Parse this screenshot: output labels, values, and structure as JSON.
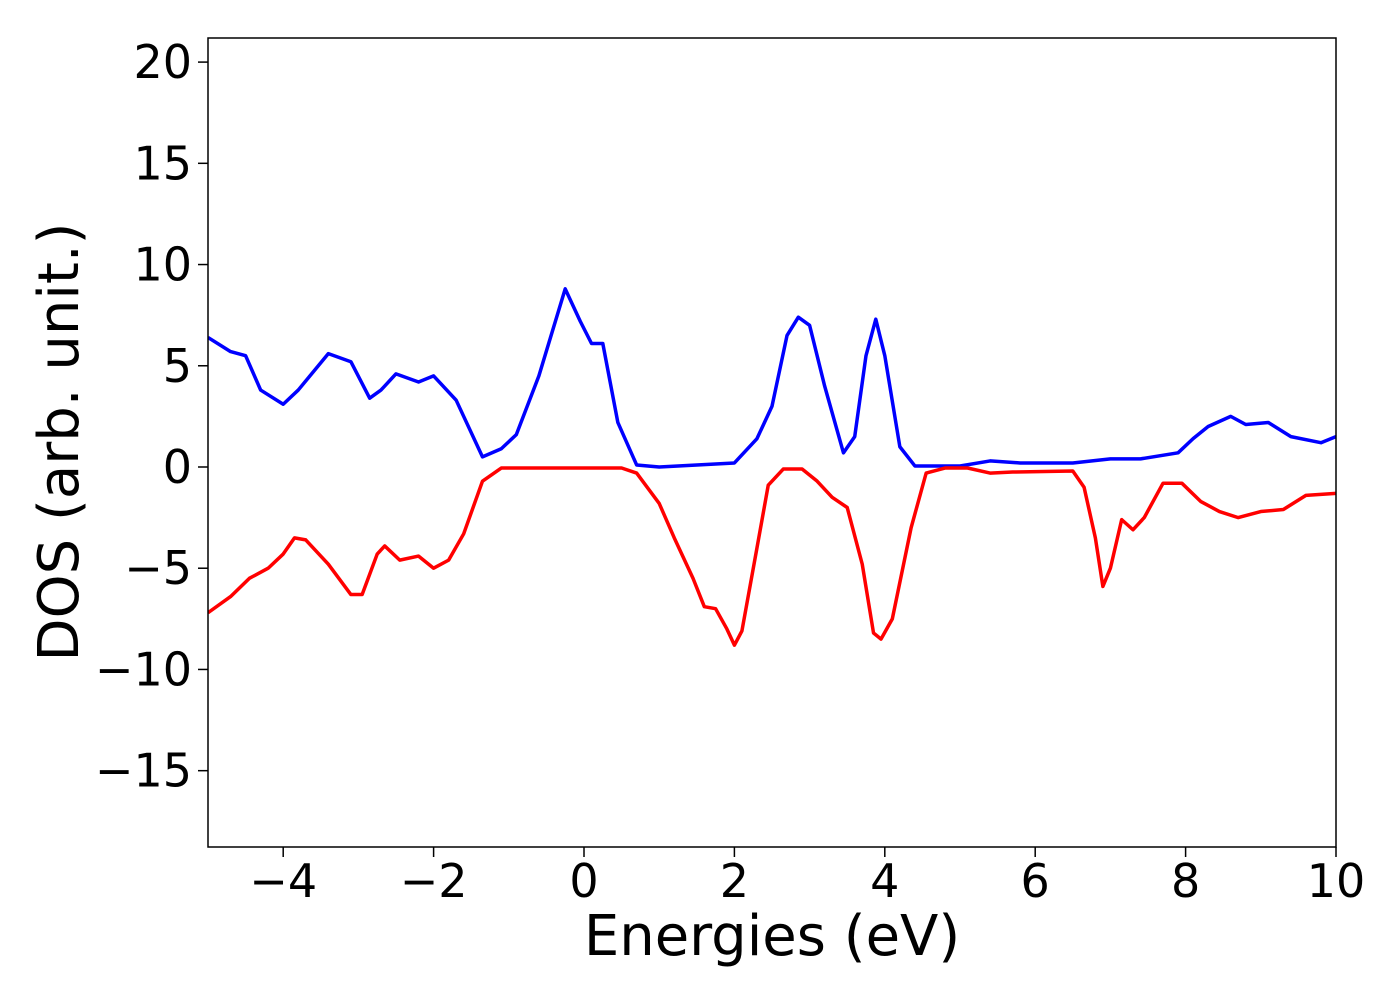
{
  "chart_data": {
    "type": "line",
    "xlabel": "Energies (eV)",
    "ylabel": "DOS (arb. unit.)",
    "xlim": [
      -5,
      10
    ],
    "ylim": [
      -18.77,
      21.19
    ],
    "xticks": [
      {
        "value": -4,
        "label": "−4"
      },
      {
        "value": -2,
        "label": "−2"
      },
      0,
      2,
      4,
      6,
      8,
      10
    ],
    "yticks": [
      {
        "value": -15,
        "label": "−15"
      },
      {
        "value": -10,
        "label": "−10"
      },
      {
        "value": -5,
        "label": "−5"
      },
      0,
      5,
      10,
      15,
      20
    ],
    "series": [
      {
        "color": "#0000ff",
        "x": [
          -5,
          -4.7,
          -4.5,
          -4.3,
          -4,
          -3.8,
          -3.4,
          -3.1,
          -2.85,
          -2.7,
          -2.5,
          -2.2,
          -2,
          -1.7,
          -1.35,
          -1.1,
          -0.9,
          -0.6,
          -0.25,
          -0.05,
          0.1,
          0.25,
          0.45,
          0.7,
          1,
          2,
          2.3,
          2.5,
          2.7,
          2.85,
          3,
          3.2,
          3.45,
          3.6,
          3.75,
          3.88,
          4,
          4.2,
          4.4,
          5,
          5.4,
          5.8,
          6.5,
          7,
          7.4,
          7.9,
          8.1,
          8.3,
          8.6,
          8.8,
          9.1,
          9.4,
          9.8,
          10
        ],
        "values": [
          6.4,
          5.7,
          5.5,
          3.8,
          3.1,
          3.8,
          5.6,
          5.2,
          3.4,
          3.8,
          4.6,
          4.2,
          4.5,
          3.3,
          0.5,
          0.9,
          1.6,
          4.5,
          8.8,
          7.2,
          6.1,
          6.1,
          2.2,
          0.1,
          0,
          0.2,
          1.4,
          3.0,
          6.5,
          7.4,
          7.0,
          4.0,
          0.7,
          1.5,
          5.5,
          7.3,
          5.5,
          1.0,
          0.05,
          0.05,
          0.3,
          0.2,
          0.2,
          0.4,
          0.4,
          0.7,
          1.4,
          2.0,
          2.5,
          2.1,
          2.2,
          1.5,
          1.2,
          1.5
        ]
      },
      {
        "color": "#ff0000",
        "x": [
          -5,
          -4.7,
          -4.45,
          -4.2,
          -4,
          -3.85,
          -3.7,
          -3.4,
          -3.1,
          -2.95,
          -2.75,
          -2.65,
          -2.45,
          -2.2,
          -2,
          -1.8,
          -1.6,
          -1.35,
          -1.1,
          0.5,
          0.7,
          1,
          1.2,
          1.45,
          1.6,
          1.75,
          1.9,
          2,
          2.1,
          2.3,
          2.45,
          2.65,
          2.9,
          3.1,
          3.3,
          3.5,
          3.7,
          3.85,
          3.95,
          4.1,
          4.35,
          4.55,
          4.8,
          5.1,
          5.4,
          5.7,
          6.5,
          6.65,
          6.8,
          6.9,
          7,
          7.15,
          7.3,
          7.45,
          7.7,
          7.95,
          8.2,
          8.45,
          8.7,
          9,
          9.3,
          9.6,
          10
        ],
        "values": [
          -7.2,
          -6.4,
          -5.5,
          -5.0,
          -4.3,
          -3.5,
          -3.6,
          -4.8,
          -6.3,
          -6.3,
          -4.3,
          -3.9,
          -4.6,
          -4.4,
          -5.0,
          -4.6,
          -3.3,
          -0.7,
          -0.05,
          -0.05,
          -0.3,
          -1.8,
          -3.5,
          -5.5,
          -6.9,
          -7.0,
          -8.0,
          -8.8,
          -8.1,
          -4.0,
          -0.9,
          -0.1,
          -0.1,
          -0.7,
          -1.5,
          -2.0,
          -4.8,
          -8.2,
          -8.5,
          -7.5,
          -3.0,
          -0.3,
          -0.05,
          -0.05,
          -0.3,
          -0.25,
          -0.2,
          -1.0,
          -3.5,
          -5.9,
          -5.0,
          -2.6,
          -3.1,
          -2.5,
          -0.8,
          -0.8,
          -1.7,
          -2.2,
          -2.5,
          -2.2,
          -2.1,
          -1.4,
          -1.3
        ]
      }
    ]
  }
}
